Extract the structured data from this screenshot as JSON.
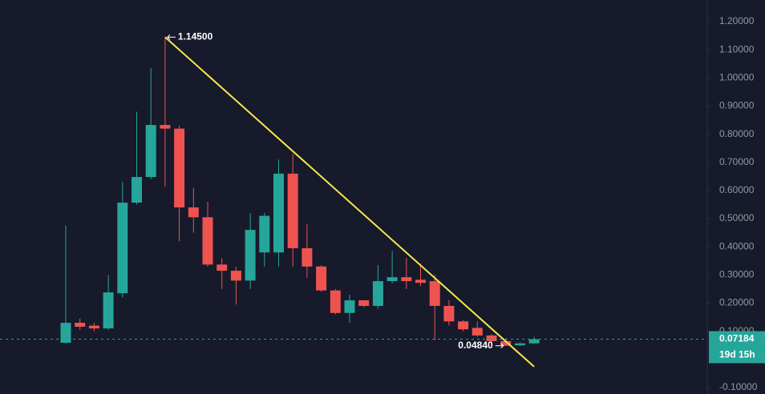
{
  "chart_data": {
    "type": "candlestick",
    "up_color": "#26a69a",
    "down_color": "#ef5350",
    "open": [
      0.059,
      0.13,
      0.12,
      0.11,
      0.235,
      0.557,
      0.648,
      0.833,
      0.82,
      0.54,
      0.505,
      0.337,
      0.315,
      0.28,
      0.38,
      0.38,
      0.66,
      0.395,
      0.33,
      0.245,
      0.165,
      0.21,
      0.19,
      0.278,
      0.292,
      0.283,
      0.278,
      0.19,
      0.135,
      0.112,
      0.085,
      0.065,
      0.05,
      0.057
    ],
    "high": [
      0.475,
      0.145,
      0.13,
      0.3,
      0.63,
      0.88,
      1.035,
      1.145,
      0.83,
      0.61,
      0.56,
      0.36,
      0.33,
      0.52,
      0.52,
      0.71,
      0.73,
      0.48,
      0.335,
      0.25,
      0.23,
      0.21,
      0.335,
      0.385,
      0.36,
      0.34,
      0.3,
      0.21,
      0.14,
      0.135,
      0.09,
      0.075,
      0.06,
      0.08
    ],
    "low": [
      0.055,
      0.105,
      0.1,
      0.105,
      0.22,
      0.55,
      0.64,
      0.613,
      0.42,
      0.45,
      0.33,
      0.25,
      0.195,
      0.25,
      0.33,
      0.33,
      0.33,
      0.29,
      0.24,
      0.16,
      0.13,
      0.185,
      0.18,
      0.27,
      0.25,
      0.26,
      0.068,
      0.12,
      0.1,
      0.08,
      0.06,
      0.0484,
      0.048,
      0.055
    ],
    "close": [
      0.13,
      0.116,
      0.11,
      0.238,
      0.557,
      0.648,
      0.833,
      0.82,
      0.54,
      0.505,
      0.337,
      0.315,
      0.28,
      0.46,
      0.51,
      0.66,
      0.395,
      0.33,
      0.245,
      0.165,
      0.21,
      0.19,
      0.278,
      0.292,
      0.278,
      0.272,
      0.19,
      0.135,
      0.107,
      0.085,
      0.065,
      0.0484,
      0.057,
      0.07184
    ],
    "ylim": [
      -0.123,
      1.277
    ],
    "yticks": [
      {
        "value": 1.2,
        "label": "1.20000"
      },
      {
        "value": 1.1,
        "label": "1.10000"
      },
      {
        "value": 1.0,
        "label": "1.00000"
      },
      {
        "value": 0.9,
        "label": "0.90000"
      },
      {
        "value": 0.8,
        "label": "0.80000"
      },
      {
        "value": 0.7,
        "label": "0.70000"
      },
      {
        "value": 0.6,
        "label": "0.60000"
      },
      {
        "value": 0.5,
        "label": "0.50000"
      },
      {
        "value": 0.4,
        "label": "0.40000"
      },
      {
        "value": 0.3,
        "label": "0.30000"
      },
      {
        "value": 0.2,
        "label": "0.20000"
      },
      {
        "value": 0.1,
        "label": "0.10000"
      },
      {
        "value": -0.1,
        "label": "-0.10000"
      }
    ],
    "last_price": {
      "value": 0.07184,
      "label": "0.07184"
    },
    "countdown": "19d 15h",
    "annotations": [
      {
        "text": "1.14500",
        "value": 1.145,
        "index": 7
      },
      {
        "text": "0.04840",
        "value": 0.0484,
        "index": 31
      }
    ],
    "trendline": {
      "color": "#f5e94a",
      "points": [
        [
          7,
          1.145
        ],
        [
          33,
          -0.026
        ]
      ]
    }
  }
}
